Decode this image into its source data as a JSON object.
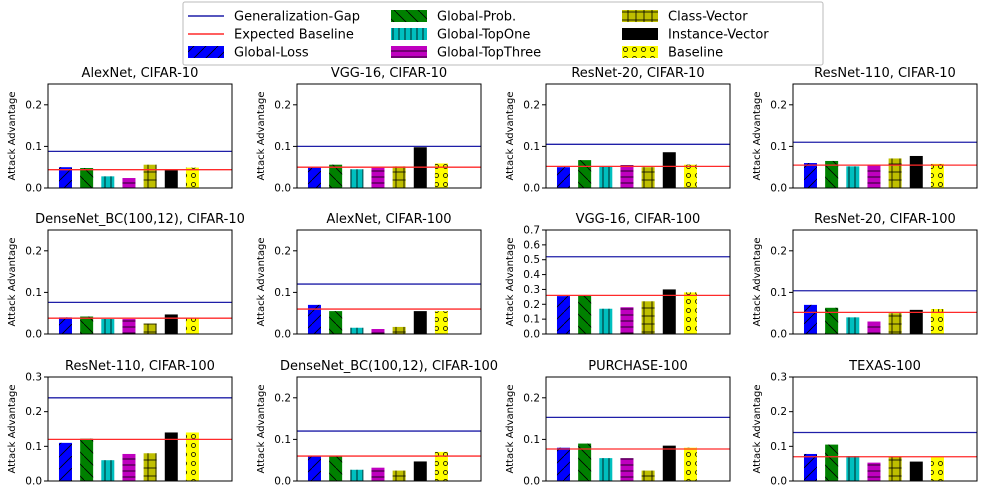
{
  "legend": [
    {
      "label": "Generalization-Gap",
      "kind": "line",
      "color": "#1f1fa8"
    },
    {
      "label": "Expected Baseline",
      "kind": "line",
      "color": "#ff2a2a"
    },
    {
      "label": "Global-Loss",
      "kind": "bar",
      "color": "#0000ff",
      "hatch": "diag-sl"
    },
    {
      "label": "Global-Prob.",
      "kind": "bar",
      "color": "#008000",
      "hatch": "diag-bs"
    },
    {
      "label": "Global-TopOne",
      "kind": "bar",
      "color": "#00bfbf",
      "hatch": "vline"
    },
    {
      "label": "Global-TopThree",
      "kind": "bar",
      "color": "#bf00bf",
      "hatch": "hline"
    },
    {
      "label": "Class-Vector",
      "kind": "bar",
      "color": "#bfbf00",
      "hatch": "plus"
    },
    {
      "label": "Instance-Vector",
      "kind": "bar",
      "color": "#000000",
      "hatch": "none"
    },
    {
      "label": "Baseline",
      "kind": "bar",
      "color": "#ffff00",
      "hatch": "circle"
    }
  ],
  "chart_data": [
    {
      "type": "bar",
      "title": "AlexNet, CIFAR-10",
      "ylabel": "Attack Advantage",
      "ylim": [
        0,
        0.25
      ],
      "yticks": [
        "0.0",
        "0.1",
        "0.2"
      ],
      "generalization_gap": 0.088,
      "expected_baseline": 0.044,
      "values": [
        0.05,
        0.048,
        0.028,
        0.024,
        0.056,
        0.043,
        0.049
      ]
    },
    {
      "type": "bar",
      "title": "VGG-16, CIFAR-10",
      "ylabel": "Attack Advantage",
      "ylim": [
        0,
        0.25
      ],
      "yticks": [
        "0.0",
        "0.1",
        "0.2"
      ],
      "generalization_gap": 0.1,
      "expected_baseline": 0.05,
      "values": [
        0.05,
        0.056,
        0.045,
        0.049,
        0.052,
        0.098,
        0.059
      ]
    },
    {
      "type": "bar",
      "title": "ResNet-20, CIFAR-10",
      "ylabel": "Attack Advantage",
      "ylim": [
        0,
        0.25
      ],
      "yticks": [
        "0.0",
        "0.1",
        "0.2"
      ],
      "generalization_gap": 0.105,
      "expected_baseline": 0.052,
      "values": [
        0.05,
        0.067,
        0.053,
        0.055,
        0.05,
        0.086,
        0.056
      ]
    },
    {
      "type": "bar",
      "title": "ResNet-110, CIFAR-10",
      "ylabel": "Attack Advantage",
      "ylim": [
        0,
        0.25
      ],
      "yticks": [
        "0.0",
        "0.1",
        "0.2"
      ],
      "generalization_gap": 0.11,
      "expected_baseline": 0.055,
      "values": [
        0.06,
        0.065,
        0.052,
        0.055,
        0.071,
        0.077,
        0.058
      ]
    },
    {
      "type": "bar",
      "title": "DenseNet_BC(100,12), CIFAR-10",
      "ylabel": "Attack Advantage",
      "ylim": [
        0,
        0.25
      ],
      "yticks": [
        "0.0",
        "0.1",
        "0.2"
      ],
      "generalization_gap": 0.076,
      "expected_baseline": 0.038,
      "values": [
        0.04,
        0.042,
        0.036,
        0.036,
        0.025,
        0.047,
        0.039
      ]
    },
    {
      "type": "bar",
      "title": "AlexNet, CIFAR-100",
      "ylabel": "Attack Advantage",
      "ylim": [
        0,
        0.25
      ],
      "yticks": [
        "0.0",
        "0.1",
        "0.2"
      ],
      "generalization_gap": 0.12,
      "expected_baseline": 0.06,
      "values": [
        0.07,
        0.055,
        0.015,
        0.012,
        0.017,
        0.055,
        0.055
      ]
    },
    {
      "type": "bar",
      "title": "VGG-16, CIFAR-100",
      "ylabel": "Attack Advantage",
      "ylim": [
        0,
        0.7
      ],
      "yticks": [
        "0.0",
        "0.1",
        "0.2",
        "0.3",
        "0.4",
        "0.5",
        "0.6",
        "0.7"
      ],
      "generalization_gap": 0.52,
      "expected_baseline": 0.26,
      "values": [
        0.255,
        0.26,
        0.17,
        0.18,
        0.22,
        0.3,
        0.28
      ]
    },
    {
      "type": "bar",
      "title": "ResNet-20, CIFAR-100",
      "ylabel": "Attack Advantage",
      "ylim": [
        0,
        0.25
      ],
      "yticks": [
        "0.0",
        "0.1",
        "0.2"
      ],
      "generalization_gap": 0.104,
      "expected_baseline": 0.052,
      "values": [
        0.07,
        0.063,
        0.04,
        0.03,
        0.05,
        0.058,
        0.06
      ]
    },
    {
      "type": "bar",
      "title": "ResNet-110, CIFAR-100",
      "ylabel": "Attack Advantage",
      "ylim": [
        0,
        0.3
      ],
      "yticks": [
        "0.0",
        "0.1",
        "0.2",
        "0.3"
      ],
      "generalization_gap": 0.24,
      "expected_baseline": 0.12,
      "values": [
        0.11,
        0.122,
        0.06,
        0.078,
        0.08,
        0.14,
        0.14
      ]
    },
    {
      "type": "bar",
      "title": "DenseNet_BC(100,12), CIFAR-100",
      "ylabel": "Attack Advantage",
      "ylim": [
        0,
        0.25
      ],
      "yticks": [
        "0.0",
        "0.1",
        "0.2"
      ],
      "generalization_gap": 0.12,
      "expected_baseline": 0.06,
      "values": [
        0.06,
        0.06,
        0.027,
        0.032,
        0.025,
        0.047,
        0.07
      ]
    },
    {
      "type": "bar",
      "title": "PURCHASE-100",
      "ylabel": "Attack Advantage",
      "ylim": [
        0,
        0.25
      ],
      "yticks": [
        "0.0",
        "0.1",
        "0.2"
      ],
      "generalization_gap": 0.153,
      "expected_baseline": 0.077,
      "values": [
        0.08,
        0.09,
        0.055,
        0.055,
        0.025,
        0.085,
        0.08
      ]
    },
    {
      "type": "bar",
      "title": "TEXAS-100",
      "ylabel": "Attack Advantage",
      "ylim": [
        0,
        0.3
      ],
      "yticks": [
        "0.0",
        "0.1",
        "0.2",
        "0.3"
      ],
      "generalization_gap": 0.14,
      "expected_baseline": 0.07,
      "values": [
        0.078,
        0.105,
        0.072,
        0.053,
        0.07,
        0.056,
        0.07
      ]
    }
  ]
}
